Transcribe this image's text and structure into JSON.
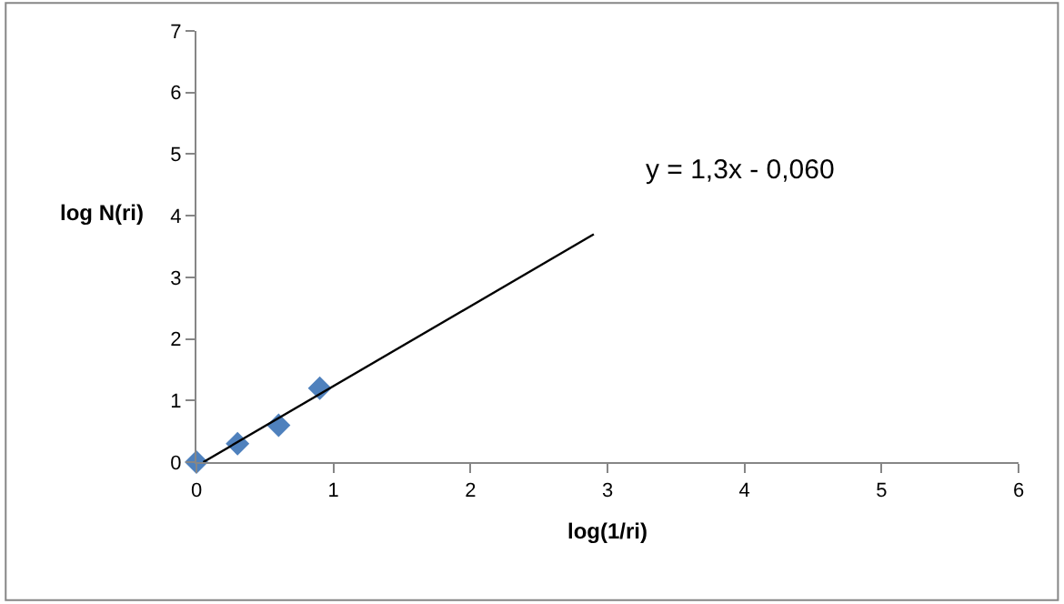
{
  "chart_data": {
    "type": "scatter",
    "xlabel": "log(1/ri)",
    "ylabel": "log N(ri)",
    "annotations": [
      "y = 1,3x - 0,060"
    ],
    "xlim": [
      0,
      6
    ],
    "xticks": [
      0,
      1,
      2,
      3,
      4,
      5,
      6
    ],
    "ylim": [
      0,
      7
    ],
    "yticks": [
      0,
      1,
      2,
      3,
      4,
      5,
      6,
      7
    ],
    "marker": "diamond",
    "series": [
      {
        "color": "#4f81bd",
        "x": [
          0,
          0.3,
          0.6,
          0.9
        ],
        "values": [
          0,
          0.3,
          0.6,
          1.2
        ]
      },
      {
        "type": "line",
        "color": "#000000",
        "x": [
          0.05,
          2.9
        ],
        "values": [
          0.0,
          3.7
        ],
        "marker": "none",
        "line_style": "solid"
      }
    ]
  }
}
